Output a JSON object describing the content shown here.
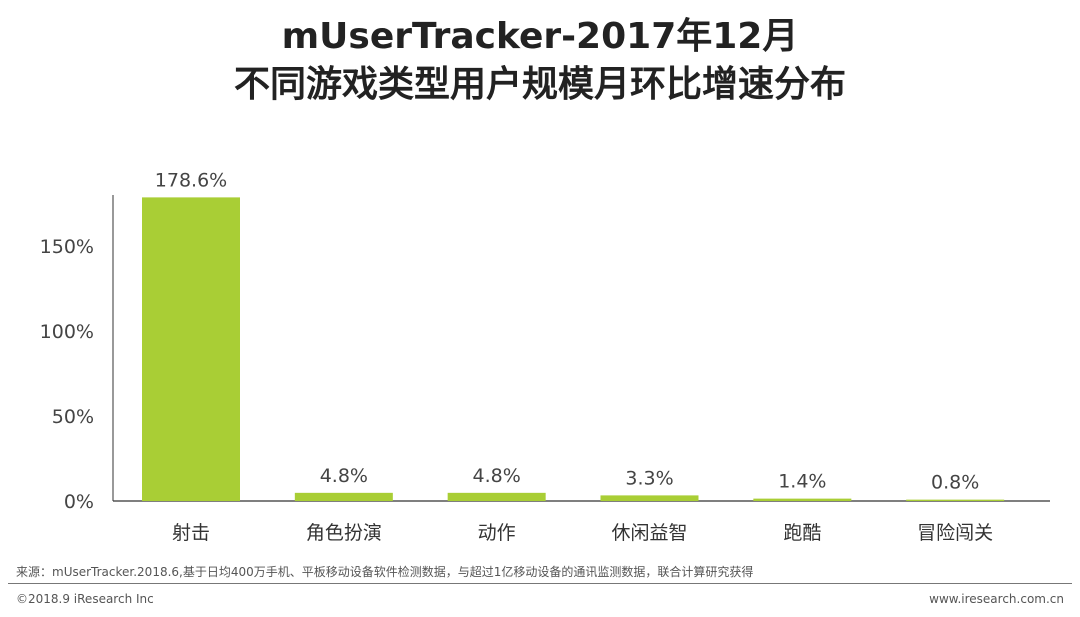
{
  "title": {
    "line1": "mUserTracker-2017年12月",
    "line2": "不同游戏类型用户规模月环比增速分布"
  },
  "chart_data": {
    "type": "bar",
    "title": "mUserTracker-2017年12月 不同游戏类型用户规模月环比增速分布",
    "categories": [
      "射击",
      "角色扮演",
      "动作",
      "休闲益智",
      "跑酷",
      "冒险闯关"
    ],
    "values": [
      178.6,
      4.8,
      4.8,
      3.3,
      1.4,
      0.8
    ],
    "value_labels": [
      "178.6%",
      "4.8%",
      "4.8%",
      "3.3%",
      "1.4%",
      "0.8%"
    ],
    "yticks": [
      0,
      50,
      100,
      150
    ],
    "ytick_labels": [
      "0%",
      "50%",
      "100%",
      "150%"
    ],
    "ylim": [
      0,
      180
    ],
    "grid": false,
    "bar_color": "#a9ce35",
    "xlabel": "",
    "ylabel": ""
  },
  "footer": {
    "source": "来源：mUserTracker.2018.6,基于日均400万手机、平板移动设备软件检测数据，与超过1亿移动设备的通讯监测数据，联合计算研究获得",
    "copyright": "©2018.9 iResearch Inc",
    "website": "www.iresearch.com.cn"
  }
}
